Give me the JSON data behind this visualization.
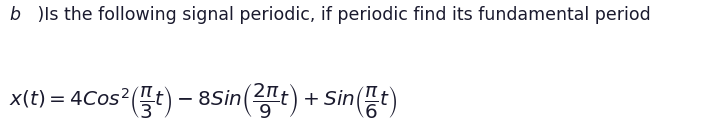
{
  "line1_b": "b",
  "line1_rest": " )Is the following signal periodic, if periodic find its fundamental period",
  "line2": "$x(t) = 4Cos^{2}\\left(\\dfrac{\\pi}{3}t\\right) - 8Sin\\left(\\dfrac{2\\pi}{9}t\\right) + Sin\\left(\\dfrac{\\pi}{6}t\\right)$",
  "background_color": "#ffffff",
  "text_color": "#1a1a2e",
  "line1_fontsize": 12.5,
  "line2_fontsize": 14.5,
  "fig_width": 7.08,
  "fig_height": 1.3,
  "dpi": 100
}
